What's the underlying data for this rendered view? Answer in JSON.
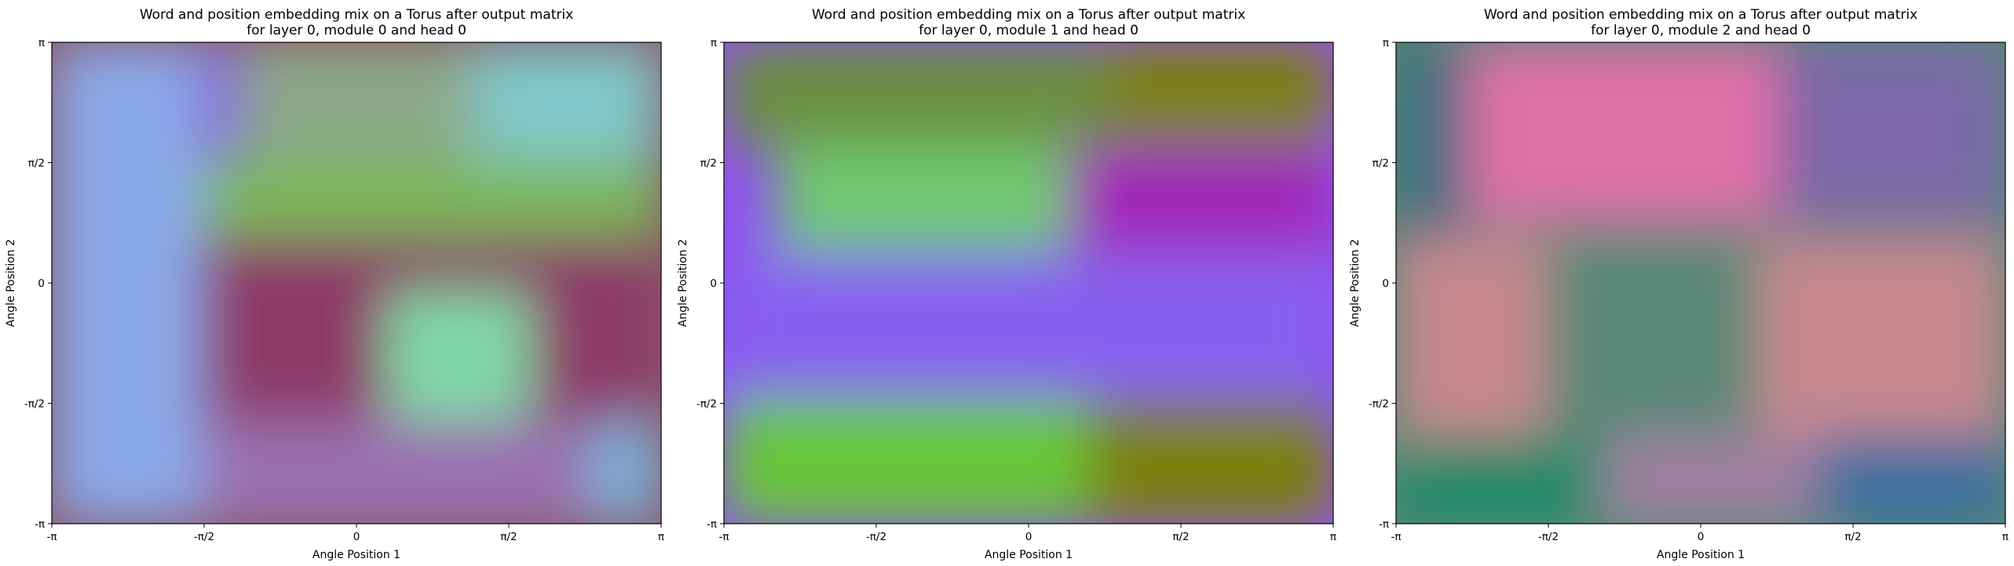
{
  "chart_data": [
    {
      "type": "heatmap",
      "title_line1": "Word and position embedding mix on a Torus after output matrix",
      "title_line2": "for layer 0, module 0 and head 0",
      "xlabel": "Angle Position 1",
      "ylabel": "Angle Position 2",
      "x_ticks": [
        "-π",
        "-π/2",
        "0",
        "π/2",
        "π"
      ],
      "y_ticks": [
        "-π",
        "-π/2",
        "0",
        "π/2",
        "π"
      ],
      "xlim": [
        -3.1416,
        3.1416
      ],
      "ylim": [
        -3.1416,
        3.1416
      ],
      "colors": {
        "base": "#8a5a6a",
        "regions": [
          {
            "x": [
              -3.1416,
              -1.2
            ],
            "y": [
              1.6,
              3.1416
            ],
            "color": "#8a5ad8"
          },
          {
            "x": [
              -1.2,
              1.2
            ],
            "y": [
              1.6,
              3.1416
            ],
            "color": "#8ca888"
          },
          {
            "x": [
              1.2,
              3.1416
            ],
            "y": [
              1.6,
              3.1416
            ],
            "color": "#80c8c8"
          },
          {
            "x": [
              -3.1416,
              3.1416
            ],
            "y": [
              0.6,
              1.6
            ],
            "color": "#7ab858"
          },
          {
            "x": [
              -3.1416,
              3.1416
            ],
            "y": [
              -1.8,
              0.6
            ],
            "color": "#8c3a68"
          },
          {
            "x": [
              0.3,
              1.8
            ],
            "y": [
              -1.8,
              -0.1
            ],
            "color": "#80d8a8"
          },
          {
            "x": [
              -3.1416,
              -1.6
            ],
            "y": [
              -3.1416,
              3.1416
            ],
            "color": "#8aa8e8"
          },
          {
            "x": [
              2.4,
              3.1416
            ],
            "y": [
              -3.1416,
              -1.8
            ],
            "color": "#7ab0d8"
          },
          {
            "x": [
              -1.6,
              2.4
            ],
            "y": [
              -3.1416,
              -1.8
            ],
            "color": "#9a70b0"
          }
        ]
      }
    },
    {
      "type": "heatmap",
      "title_line1": "Word and position embedding mix on a Torus after output matrix",
      "title_line2": "for layer 0, module 1 and head 0",
      "xlabel": "Angle Position 1",
      "ylabel": "Angle Position 2",
      "x_ticks": [
        "-π",
        "-π/2",
        "0",
        "π/2",
        "π"
      ],
      "y_ticks": [
        "-π",
        "-π/2",
        "0",
        "π/2",
        "π"
      ],
      "xlim": [
        -3.1416,
        3.1416
      ],
      "ylim": [
        -3.1416,
        3.1416
      ],
      "colors": {
        "base": "#9050f0",
        "regions": [
          {
            "x": [
              -3.1416,
              0.8
            ],
            "y": [
              1.8,
              3.1416
            ],
            "color": "#6a9040"
          },
          {
            "x": [
              0.8,
              3.1416
            ],
            "y": [
              1.8,
              3.1416
            ],
            "color": "#7a8010"
          },
          {
            "x": [
              -2.6,
              0.4
            ],
            "y": [
              0.4,
              1.8
            ],
            "color": "#70c870"
          },
          {
            "x": [
              0.4,
              3.1416
            ],
            "y": [
              0.4,
              1.8
            ],
            "color": "#a028b8"
          },
          {
            "x": [
              -3.1416,
              3.1416
            ],
            "y": [
              -1.5,
              0.4
            ],
            "color": "#8860f0"
          },
          {
            "x": [
              -3.1416,
              0.6
            ],
            "y": [
              -3.1416,
              -1.5
            ],
            "color": "#68c838"
          },
          {
            "x": [
              0.6,
              3.1416
            ],
            "y": [
              -3.1416,
              -1.5
            ],
            "color": "#7a8010"
          }
        ]
      }
    },
    {
      "type": "heatmap",
      "title_line1": "Word and position embedding mix on a Torus after output matrix",
      "title_line2": "for layer 0, module 2 and head 0",
      "xlabel": "Angle Position 1",
      "ylabel": "Angle Position 2",
      "x_ticks": [
        "-π",
        "-π/2",
        "0",
        "π/2",
        "π"
      ],
      "y_ticks": [
        "-π",
        "-π/2",
        "0",
        "π/2",
        "π"
      ],
      "xlim": [
        -3.1416,
        3.1416
      ],
      "ylim": [
        -3.1416,
        3.1416
      ],
      "colors": {
        "base": "#5a8878",
        "regions": [
          {
            "x": [
              -3.1416,
              -2.4
            ],
            "y": [
              0.6,
              3.1416
            ],
            "color": "#3a7080"
          },
          {
            "x": [
              -2.4,
              0.8
            ],
            "y": [
              0.8,
              3.1416
            ],
            "color": "#e070a8"
          },
          {
            "x": [
              0.8,
              3.1416
            ],
            "y": [
              0.8,
              3.1416
            ],
            "color": "#7a68a8"
          },
          {
            "x": [
              -3.1416,
              -1.6
            ],
            "y": [
              -2.0,
              0.6
            ],
            "color": "#c88890"
          },
          {
            "x": [
              -1.6,
              0.6
            ],
            "y": [
              -2.0,
              0.6
            ],
            "color": "#5a8878"
          },
          {
            "x": [
              0.6,
              3.1416
            ],
            "y": [
              -2.0,
              0.6
            ],
            "color": "#c88890"
          },
          {
            "x": [
              -3.1416,
              -1.0
            ],
            "y": [
              -3.1416,
              -2.0
            ],
            "color": "#1a8a6a"
          },
          {
            "x": [
              -1.0,
              1.2
            ],
            "y": [
              -3.1416,
              -2.0
            ],
            "color": "#a080a0"
          },
          {
            "x": [
              1.2,
              3.1416
            ],
            "y": [
              -3.1416,
              -2.0
            ],
            "color": "#3a70a0"
          }
        ]
      }
    }
  ]
}
